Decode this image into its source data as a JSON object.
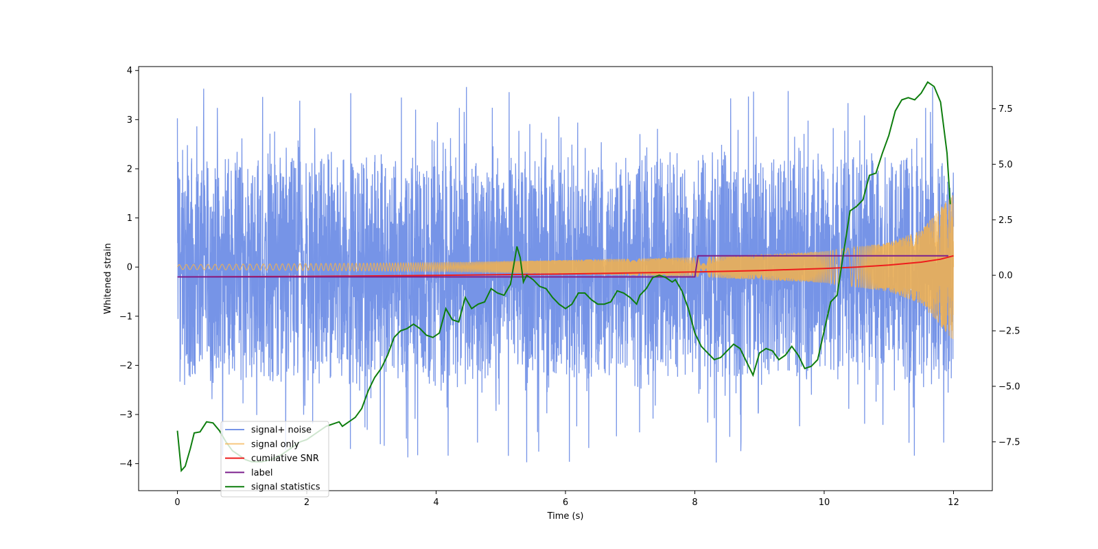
{
  "chart_data": {
    "type": "line",
    "title": "",
    "xlabel": "Time (s)",
    "ylabel": "Whitened strain",
    "y2label": "",
    "xlim": [
      -0.6,
      12.6
    ],
    "ylim": [
      -4.55,
      4.08
    ],
    "y2lim": [
      -9.7,
      9.4
    ],
    "x_ticks": [
      0,
      2,
      4,
      6,
      8,
      10,
      12
    ],
    "x_tick_labels": [
      "0",
      "2",
      "4",
      "6",
      "8",
      "10",
      "12"
    ],
    "y_ticks": [
      4,
      3,
      2,
      1,
      0,
      -1,
      -2,
      -3,
      -4
    ],
    "y_tick_labels": [
      "4",
      "3",
      "2",
      "1",
      "0",
      "−1",
      "−2",
      "−3",
      "−4"
    ],
    "y2_ticks": [
      7.5,
      5.0,
      2.5,
      0.0,
      -2.5,
      -5.0,
      -7.5
    ],
    "y2_tick_labels": [
      "7.5",
      "5.0",
      "2.5",
      "0.0",
      "−2.5",
      "−5.0",
      "−7.5"
    ],
    "grid": false,
    "legend_position": "lower-left",
    "series": [
      {
        "name": "signal+ noise",
        "color": "#6f8ee6",
        "axis": "left",
        "kind": "noise",
        "x_range": [
          0,
          12
        ],
        "typical_range": [
          -1.6,
          1.6
        ],
        "extreme_range": [
          -4.0,
          3.7
        ]
      },
      {
        "name": "signal only",
        "color": "#f5b14b",
        "axis": "left",
        "kind": "chirp",
        "x_range": [
          0,
          12
        ],
        "amplitude": [
          [
            0,
            0.05
          ],
          [
            4,
            0.09
          ],
          [
            8,
            0.2
          ],
          [
            10,
            0.32
          ],
          [
            11,
            0.5
          ],
          [
            11.5,
            0.75
          ],
          [
            12,
            1.5
          ]
        ]
      },
      {
        "name": "cumilative SNR",
        "color": "#ee1c1c",
        "axis": "left",
        "x": [
          0,
          2,
          4,
          6,
          7,
          8,
          9,
          10,
          10.5,
          11,
          11.5,
          11.8,
          12
        ],
        "y": [
          -0.2,
          -0.19,
          -0.17,
          -0.14,
          -0.12,
          -0.1,
          -0.07,
          -0.03,
          0.0,
          0.04,
          0.1,
          0.16,
          0.23
        ]
      },
      {
        "name": "label",
        "color": "#7b1f8c",
        "axis": "left",
        "x": [
          0,
          8,
          8.05,
          11.92
        ],
        "y": [
          -0.2,
          -0.2,
          0.23,
          0.23
        ]
      },
      {
        "name": "signal statistics",
        "color": "#0d7d0d",
        "axis": "right",
        "x": [
          0,
          0.06,
          0.12,
          0.2,
          0.26,
          0.35,
          0.45,
          0.55,
          0.65,
          0.75,
          0.85,
          0.95,
          1.05,
          1.15,
          1.3,
          1.45,
          1.6,
          1.75,
          1.9,
          2.0,
          2.1,
          2.2,
          2.3,
          2.4,
          2.5,
          2.55,
          2.65,
          2.75,
          2.85,
          2.95,
          3.05,
          3.15,
          3.25,
          3.35,
          3.45,
          3.55,
          3.65,
          3.75,
          3.85,
          3.95,
          4.05,
          4.15,
          4.25,
          4.35,
          4.45,
          4.55,
          4.65,
          4.75,
          4.85,
          4.95,
          5.05,
          5.15,
          5.25,
          5.3,
          5.35,
          5.4,
          5.5,
          5.6,
          5.7,
          5.8,
          5.9,
          6.0,
          6.1,
          6.2,
          6.3,
          6.4,
          6.5,
          6.6,
          6.7,
          6.8,
          6.9,
          7.0,
          7.1,
          7.15,
          7.25,
          7.35,
          7.45,
          7.55,
          7.65,
          7.7,
          7.8,
          7.9,
          8.0,
          8.1,
          8.2,
          8.3,
          8.4,
          8.5,
          8.6,
          8.7,
          8.8,
          8.9,
          9.0,
          9.1,
          9.2,
          9.3,
          9.4,
          9.5,
          9.6,
          9.7,
          9.8,
          9.9,
          10.0,
          10.1,
          10.2,
          10.3,
          10.4,
          10.5,
          10.6,
          10.7,
          10.8,
          10.9,
          11.0,
          11.1,
          11.2,
          11.3,
          11.4,
          11.5,
          11.6,
          11.7,
          11.8,
          11.9,
          11.95
        ],
        "y": [
          -7.0,
          -8.8,
          -8.6,
          -7.8,
          -7.1,
          -7.05,
          -6.6,
          -6.65,
          -7.0,
          -7.5,
          -7.9,
          -8.1,
          -8.3,
          -8.4,
          -8.4,
          -8.3,
          -8.1,
          -7.8,
          -7.5,
          -7.4,
          -7.2,
          -7.0,
          -6.8,
          -6.7,
          -6.6,
          -6.8,
          -6.6,
          -6.4,
          -6.0,
          -5.2,
          -4.6,
          -4.2,
          -3.6,
          -2.8,
          -2.5,
          -2.4,
          -2.2,
          -2.4,
          -2.7,
          -2.8,
          -2.6,
          -1.5,
          -2.0,
          -2.1,
          -1.0,
          -1.5,
          -1.3,
          -1.2,
          -0.6,
          -0.8,
          -0.9,
          -0.4,
          1.3,
          0.8,
          -0.3,
          0.0,
          -0.2,
          -0.5,
          -0.6,
          -1.0,
          -1.3,
          -1.5,
          -1.3,
          -0.8,
          -0.8,
          -1.1,
          -1.3,
          -1.3,
          -1.2,
          -0.7,
          -0.8,
          -1.0,
          -1.3,
          -0.9,
          -0.6,
          -0.1,
          0.0,
          -0.1,
          -0.3,
          -0.2,
          -0.7,
          -1.5,
          -2.6,
          -3.2,
          -3.5,
          -3.8,
          -3.7,
          -3.4,
          -3.1,
          -3.3,
          -3.9,
          -4.5,
          -3.5,
          -3.3,
          -3.4,
          -3.8,
          -3.6,
          -3.2,
          -3.6,
          -4.2,
          -4.1,
          -3.8,
          -2.5,
          -1.2,
          -0.9,
          1.0,
          2.9,
          3.1,
          3.4,
          4.5,
          4.6,
          5.5,
          6.3,
          7.4,
          7.9,
          8.0,
          7.9,
          8.2,
          8.7,
          8.5,
          7.8,
          5.5,
          3.2
        ]
      }
    ]
  }
}
